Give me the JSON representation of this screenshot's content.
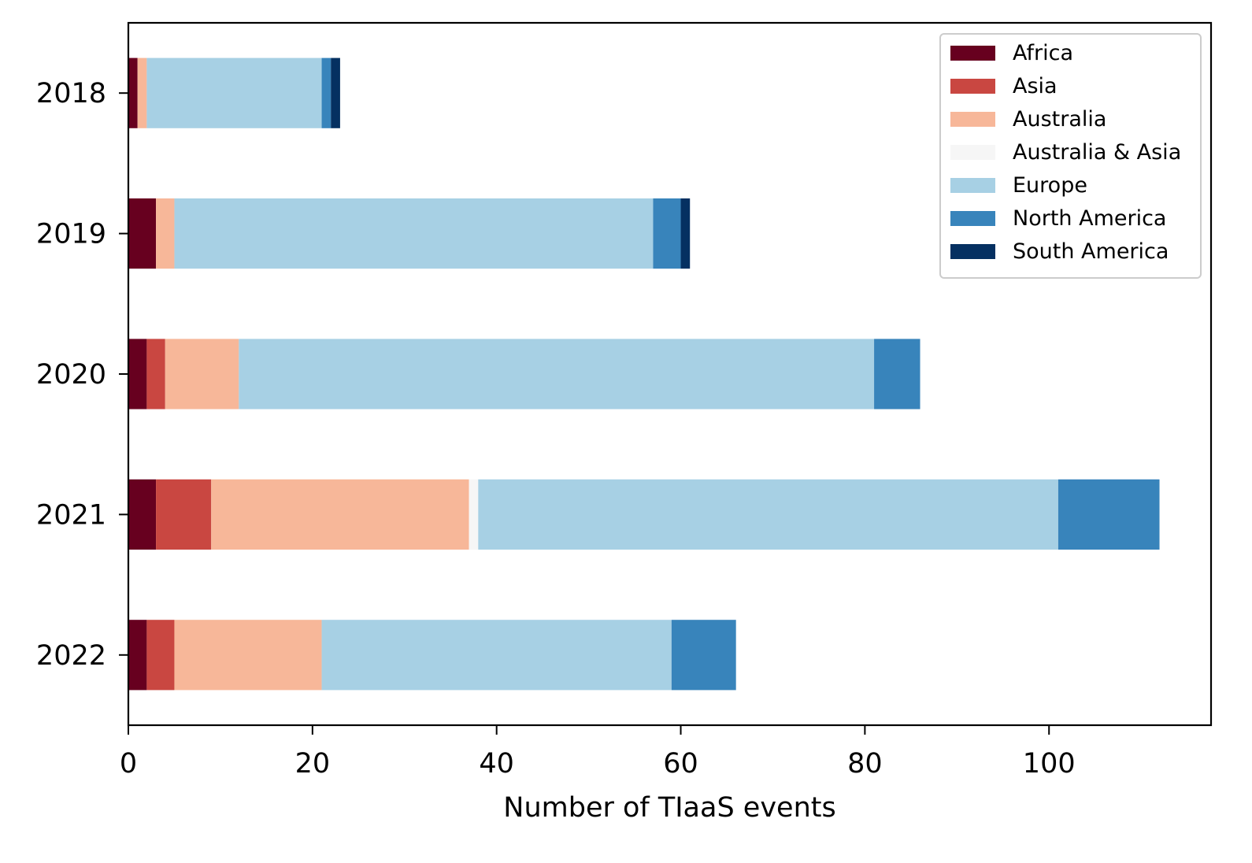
{
  "chart_data": {
    "type": "bar",
    "orientation": "horizontal",
    "stacked": true,
    "title": "",
    "xlabel": "Number of TIaaS events",
    "ylabel": "",
    "categories": [
      "2018",
      "2019",
      "2020",
      "2021",
      "2022"
    ],
    "xlim": [
      0,
      117.6
    ],
    "xticks": [
      "0",
      "20",
      "40",
      "60",
      "80",
      "100"
    ],
    "grid": false,
    "legend_position": "top-right",
    "series": [
      {
        "name": "Africa",
        "color": "#67001f",
        "values": [
          1,
          3,
          2,
          3,
          2
        ]
      },
      {
        "name": "Asia",
        "color": "#c94741",
        "values": [
          0,
          0,
          2,
          6,
          3
        ]
      },
      {
        "name": "Australia",
        "color": "#f7b799",
        "values": [
          1,
          2,
          8,
          28,
          16
        ]
      },
      {
        "name": "Australia & Asia",
        "color": "#f6f6f6",
        "values": [
          0,
          0,
          0,
          1,
          0
        ]
      },
      {
        "name": "Europe",
        "color": "#a7d0e4",
        "values": [
          19,
          52,
          69,
          63,
          38
        ]
      },
      {
        "name": "North America",
        "color": "#3884bb",
        "values": [
          1,
          3,
          5,
          11,
          7
        ]
      },
      {
        "name": "South America",
        "color": "#053061",
        "values": [
          1,
          1,
          0,
          0,
          0
        ]
      }
    ]
  }
}
